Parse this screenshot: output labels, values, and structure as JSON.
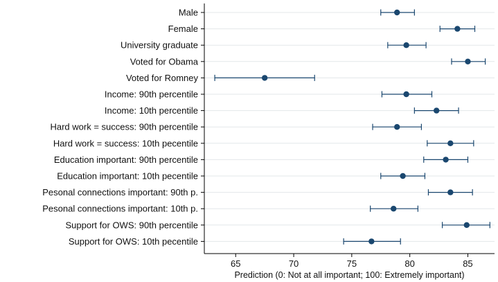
{
  "chart_data": {
    "type": "scatter",
    "subtype": "coefficient-plot-with-error-bars",
    "title": "",
    "xlabel": "Prediction (0: Not at all important; 100: Extremely important)",
    "ylabel": "",
    "xlim": [
      62.3,
      87.3
    ],
    "xticks": [
      65,
      70,
      75,
      80,
      85
    ],
    "grid": "horizontal",
    "legend": "none",
    "colors": {
      "marker": "#1a476f",
      "grid": "#e3e7ea",
      "axis": "#000000"
    },
    "categories": [
      "Male",
      "Female",
      "University graduate",
      "Voted for Obama",
      "Voted for Romney",
      "Income: 90th percentile",
      "Income: 10th percentile",
      "Hard work = success: 90th percentile",
      "Hard work = success: 10th pecentile",
      "Education important: 90th percentile",
      "Education important: 10th pecentile",
      "Pesonal connections important: 90th p.",
      "Pesonal connections important: 10th p.",
      "Support for OWS: 90th percentile",
      "Support for OWS: 10th pecentile"
    ],
    "points": [
      {
        "estimate": 78.9,
        "lower": 77.5,
        "upper": 80.4
      },
      {
        "estimate": 84.1,
        "lower": 82.6,
        "upper": 85.6
      },
      {
        "estimate": 79.7,
        "lower": 78.1,
        "upper": 81.4
      },
      {
        "estimate": 85.0,
        "lower": 83.6,
        "upper": 86.5
      },
      {
        "estimate": 67.5,
        "lower": 63.2,
        "upper": 71.8
      },
      {
        "estimate": 79.7,
        "lower": 77.6,
        "upper": 81.9
      },
      {
        "estimate": 82.3,
        "lower": 80.4,
        "upper": 84.2
      },
      {
        "estimate": 78.9,
        "lower": 76.8,
        "upper": 81.0
      },
      {
        "estimate": 83.5,
        "lower": 81.5,
        "upper": 85.5
      },
      {
        "estimate": 83.1,
        "lower": 81.2,
        "upper": 85.0
      },
      {
        "estimate": 79.4,
        "lower": 77.5,
        "upper": 81.3
      },
      {
        "estimate": 83.5,
        "lower": 81.6,
        "upper": 85.4
      },
      {
        "estimate": 78.6,
        "lower": 76.6,
        "upper": 80.7
      },
      {
        "estimate": 84.9,
        "lower": 82.8,
        "upper": 86.9
      },
      {
        "estimate": 76.7,
        "lower": 74.3,
        "upper": 79.2
      }
    ]
  }
}
